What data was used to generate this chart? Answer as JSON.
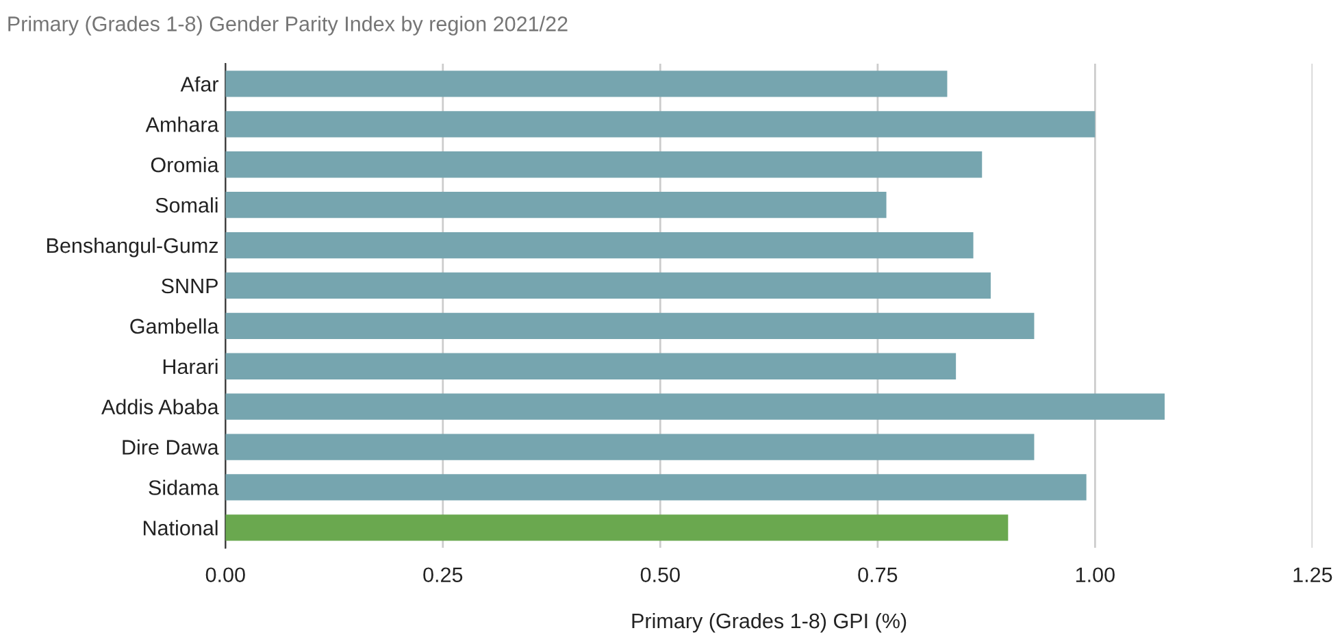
{
  "chart_data": {
    "type": "bar",
    "orientation": "horizontal",
    "title": "Primary (Grades 1-8) Gender Parity Index by region 2021/22",
    "xlabel": "Primary (Grades 1-8) GPI (%)",
    "categories": [
      "Afar",
      "Amhara",
      "Oromia",
      "Somali",
      "Benshangul-Gumz",
      "SNNP",
      "Gambella",
      "Harari",
      "Addis Ababa",
      "Dire Dawa",
      "Sidama",
      "National"
    ],
    "values": [
      0.83,
      1.0,
      0.87,
      0.76,
      0.86,
      0.88,
      0.93,
      0.84,
      1.08,
      0.93,
      0.99,
      0.9
    ],
    "colors": [
      "#76a5af",
      "#76a5af",
      "#76a5af",
      "#76a5af",
      "#76a5af",
      "#76a5af",
      "#76a5af",
      "#76a5af",
      "#76a5af",
      "#76a5af",
      "#76a5af",
      "#6aa84f"
    ],
    "xlim": [
      0,
      1.25
    ],
    "xticks": [
      {
        "value": 0,
        "label": "0.00"
      },
      {
        "value": 0.25,
        "label": "0.25"
      },
      {
        "value": 0.5,
        "label": "0.50"
      },
      {
        "value": 0.75,
        "label": "0.75"
      },
      {
        "value": 1.0,
        "label": "1.00"
      },
      {
        "value": 1.25,
        "label": "1.25"
      }
    ],
    "grid": "x"
  }
}
